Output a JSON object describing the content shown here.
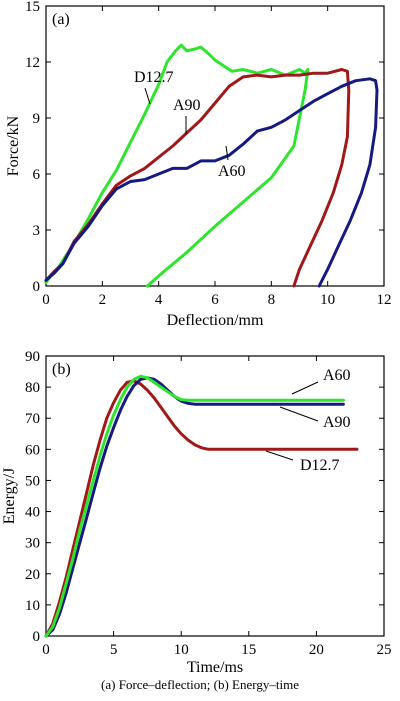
{
  "caption": "(a) Force–deflection; (b) Energy–time",
  "chart_data": [
    {
      "type": "line",
      "panel_label": "(a)",
      "xlabel": "Deflection/mm",
      "ylabel": "Force/kN",
      "xlim": [
        0,
        12
      ],
      "ylim": [
        0,
        15
      ],
      "xticks": [
        0,
        2,
        4,
        6,
        8,
        10,
        12
      ],
      "yticks": [
        0,
        3,
        6,
        9,
        12,
        15
      ],
      "colors": {
        "D12.7": "#2ee52e",
        "A90": "#a01818",
        "A60": "#141a80"
      },
      "series": [
        {
          "name": "D12.7",
          "x": [
            0.0,
            0.2,
            0.4,
            0.7,
            1.0,
            1.5,
            2.0,
            2.5,
            3.0,
            3.5,
            4.0,
            4.3,
            4.6,
            4.8,
            5.0,
            5.3,
            5.5,
            5.8,
            6.0,
            6.3,
            6.6,
            7.0,
            7.5,
            8.0,
            8.5,
            9.0,
            9.2,
            9.3,
            9.2,
            8.8,
            8.0,
            7.0,
            6.0,
            5.0,
            4.2,
            3.6
          ],
          "y": [
            0.2,
            0.6,
            0.9,
            1.6,
            2.3,
            3.6,
            5.0,
            6.2,
            7.7,
            9.2,
            10.8,
            12.0,
            12.6,
            12.9,
            12.6,
            12.7,
            12.8,
            12.4,
            12.1,
            11.8,
            11.5,
            11.6,
            11.4,
            11.6,
            11.3,
            11.6,
            11.4,
            11.6,
            10.5,
            7.5,
            5.8,
            4.5,
            3.2,
            1.8,
            0.8,
            0.0
          ]
        },
        {
          "name": "A90",
          "x": [
            0.0,
            0.3,
            0.6,
            1.0,
            1.5,
            2.0,
            2.5,
            3.0,
            3.5,
            4.0,
            4.5,
            5.0,
            5.5,
            6.0,
            6.5,
            7.0,
            7.5,
            8.0,
            8.5,
            9.0,
            9.5,
            10.0,
            10.5,
            10.7,
            10.75,
            10.7,
            10.5,
            10.2,
            9.8,
            9.4,
            9.0,
            8.8
          ],
          "y": [
            0.3,
            0.8,
            1.2,
            2.4,
            3.3,
            4.4,
            5.4,
            5.9,
            6.3,
            6.9,
            7.5,
            8.2,
            8.9,
            9.8,
            10.7,
            11.2,
            11.3,
            11.2,
            11.3,
            11.3,
            11.4,
            11.4,
            11.6,
            11.5,
            10.5,
            8.0,
            6.5,
            5.0,
            3.5,
            2.2,
            0.9,
            0.0
          ]
        },
        {
          "name": "A60",
          "x": [
            0.0,
            0.3,
            0.6,
            1.0,
            1.5,
            2.0,
            2.5,
            3.0,
            3.5,
            4.0,
            4.5,
            5.0,
            5.5,
            6.0,
            6.5,
            7.0,
            7.5,
            8.0,
            8.5,
            9.0,
            9.5,
            10.0,
            10.5,
            11.0,
            11.5,
            11.7,
            11.75,
            11.7,
            11.5,
            11.2,
            10.8,
            10.4,
            10.0,
            9.7
          ],
          "y": [
            0.3,
            0.7,
            1.2,
            2.3,
            3.2,
            4.3,
            5.2,
            5.6,
            5.7,
            6.0,
            6.3,
            6.3,
            6.7,
            6.7,
            7.0,
            7.6,
            8.3,
            8.5,
            8.9,
            9.4,
            9.9,
            10.3,
            10.7,
            11.0,
            11.1,
            11.0,
            10.5,
            8.5,
            6.5,
            5.0,
            3.5,
            2.2,
            0.9,
            0.0
          ]
        }
      ],
      "annotations": [
        {
          "text": "D12.7",
          "series": "D12.7"
        },
        {
          "text": "A90",
          "series": "A90"
        },
        {
          "text": "A60",
          "series": "A60"
        }
      ]
    },
    {
      "type": "line",
      "panel_label": "(b)",
      "xlabel": "Time/ms",
      "ylabel": "Energy/J",
      "xlim": [
        0,
        25
      ],
      "ylim": [
        0,
        90
      ],
      "xticks": [
        0,
        5,
        10,
        15,
        20,
        25
      ],
      "yticks": [
        0,
        10,
        20,
        30,
        40,
        50,
        60,
        70,
        80,
        90
      ],
      "colors": {
        "D12.7": "#a01818",
        "A90": "#141a80",
        "A60": "#2ee52e"
      },
      "series": [
        {
          "name": "D12.7",
          "x": [
            0,
            0.5,
            1,
            1.5,
            2,
            2.5,
            3,
            3.5,
            4,
            4.5,
            5,
            5.5,
            6,
            6.5,
            7,
            7.5,
            8,
            8.5,
            9,
            9.5,
            10,
            10.5,
            11,
            11.5,
            12,
            14,
            16,
            18,
            20,
            22,
            23
          ],
          "y": [
            0,
            4,
            11,
            19,
            28,
            37,
            46,
            55,
            63,
            70,
            75,
            79,
            81.5,
            82,
            81,
            79,
            76.5,
            73.5,
            70.5,
            67.5,
            65,
            63,
            61.5,
            60.5,
            60,
            60,
            60,
            60,
            60,
            60,
            60
          ]
        },
        {
          "name": "A90",
          "x": [
            0,
            0.5,
            1,
            1.5,
            2,
            2.5,
            3,
            3.5,
            4,
            4.5,
            5,
            5.5,
            6,
            6.5,
            7,
            7.5,
            8,
            8.5,
            9,
            9.5,
            10,
            10.5,
            11,
            12,
            14,
            16,
            18,
            20,
            22
          ],
          "y": [
            0,
            2,
            7,
            14,
            22,
            30,
            38,
            46,
            54,
            61,
            67,
            72.5,
            77,
            80.5,
            82.5,
            83,
            82.5,
            81,
            79,
            77,
            75.5,
            74.8,
            74.5,
            74.5,
            74.5,
            74.5,
            74.5,
            74.5,
            74.5
          ]
        },
        {
          "name": "A60",
          "x": [
            0,
            0.5,
            1,
            1.5,
            2,
            2.5,
            3,
            3.5,
            4,
            4.5,
            5,
            5.5,
            6,
            6.5,
            7,
            7.5,
            8,
            8.5,
            9,
            9.5,
            10,
            10.5,
            11,
            12,
            14,
            16,
            18,
            20,
            22
          ],
          "y": [
            0,
            3,
            9,
            17,
            25,
            34,
            42,
            50,
            58,
            65,
            71,
            76,
            80,
            82.5,
            83.5,
            83,
            81.5,
            80,
            78.5,
            77,
            76,
            75.8,
            75.8,
            75.8,
            75.8,
            75.8,
            75.8,
            75.8,
            75.8
          ]
        }
      ],
      "annotations": [
        {
          "text": "A60",
          "series": "A60"
        },
        {
          "text": "A90",
          "series": "A90"
        },
        {
          "text": "D12.7",
          "series": "D12.7"
        }
      ]
    }
  ]
}
